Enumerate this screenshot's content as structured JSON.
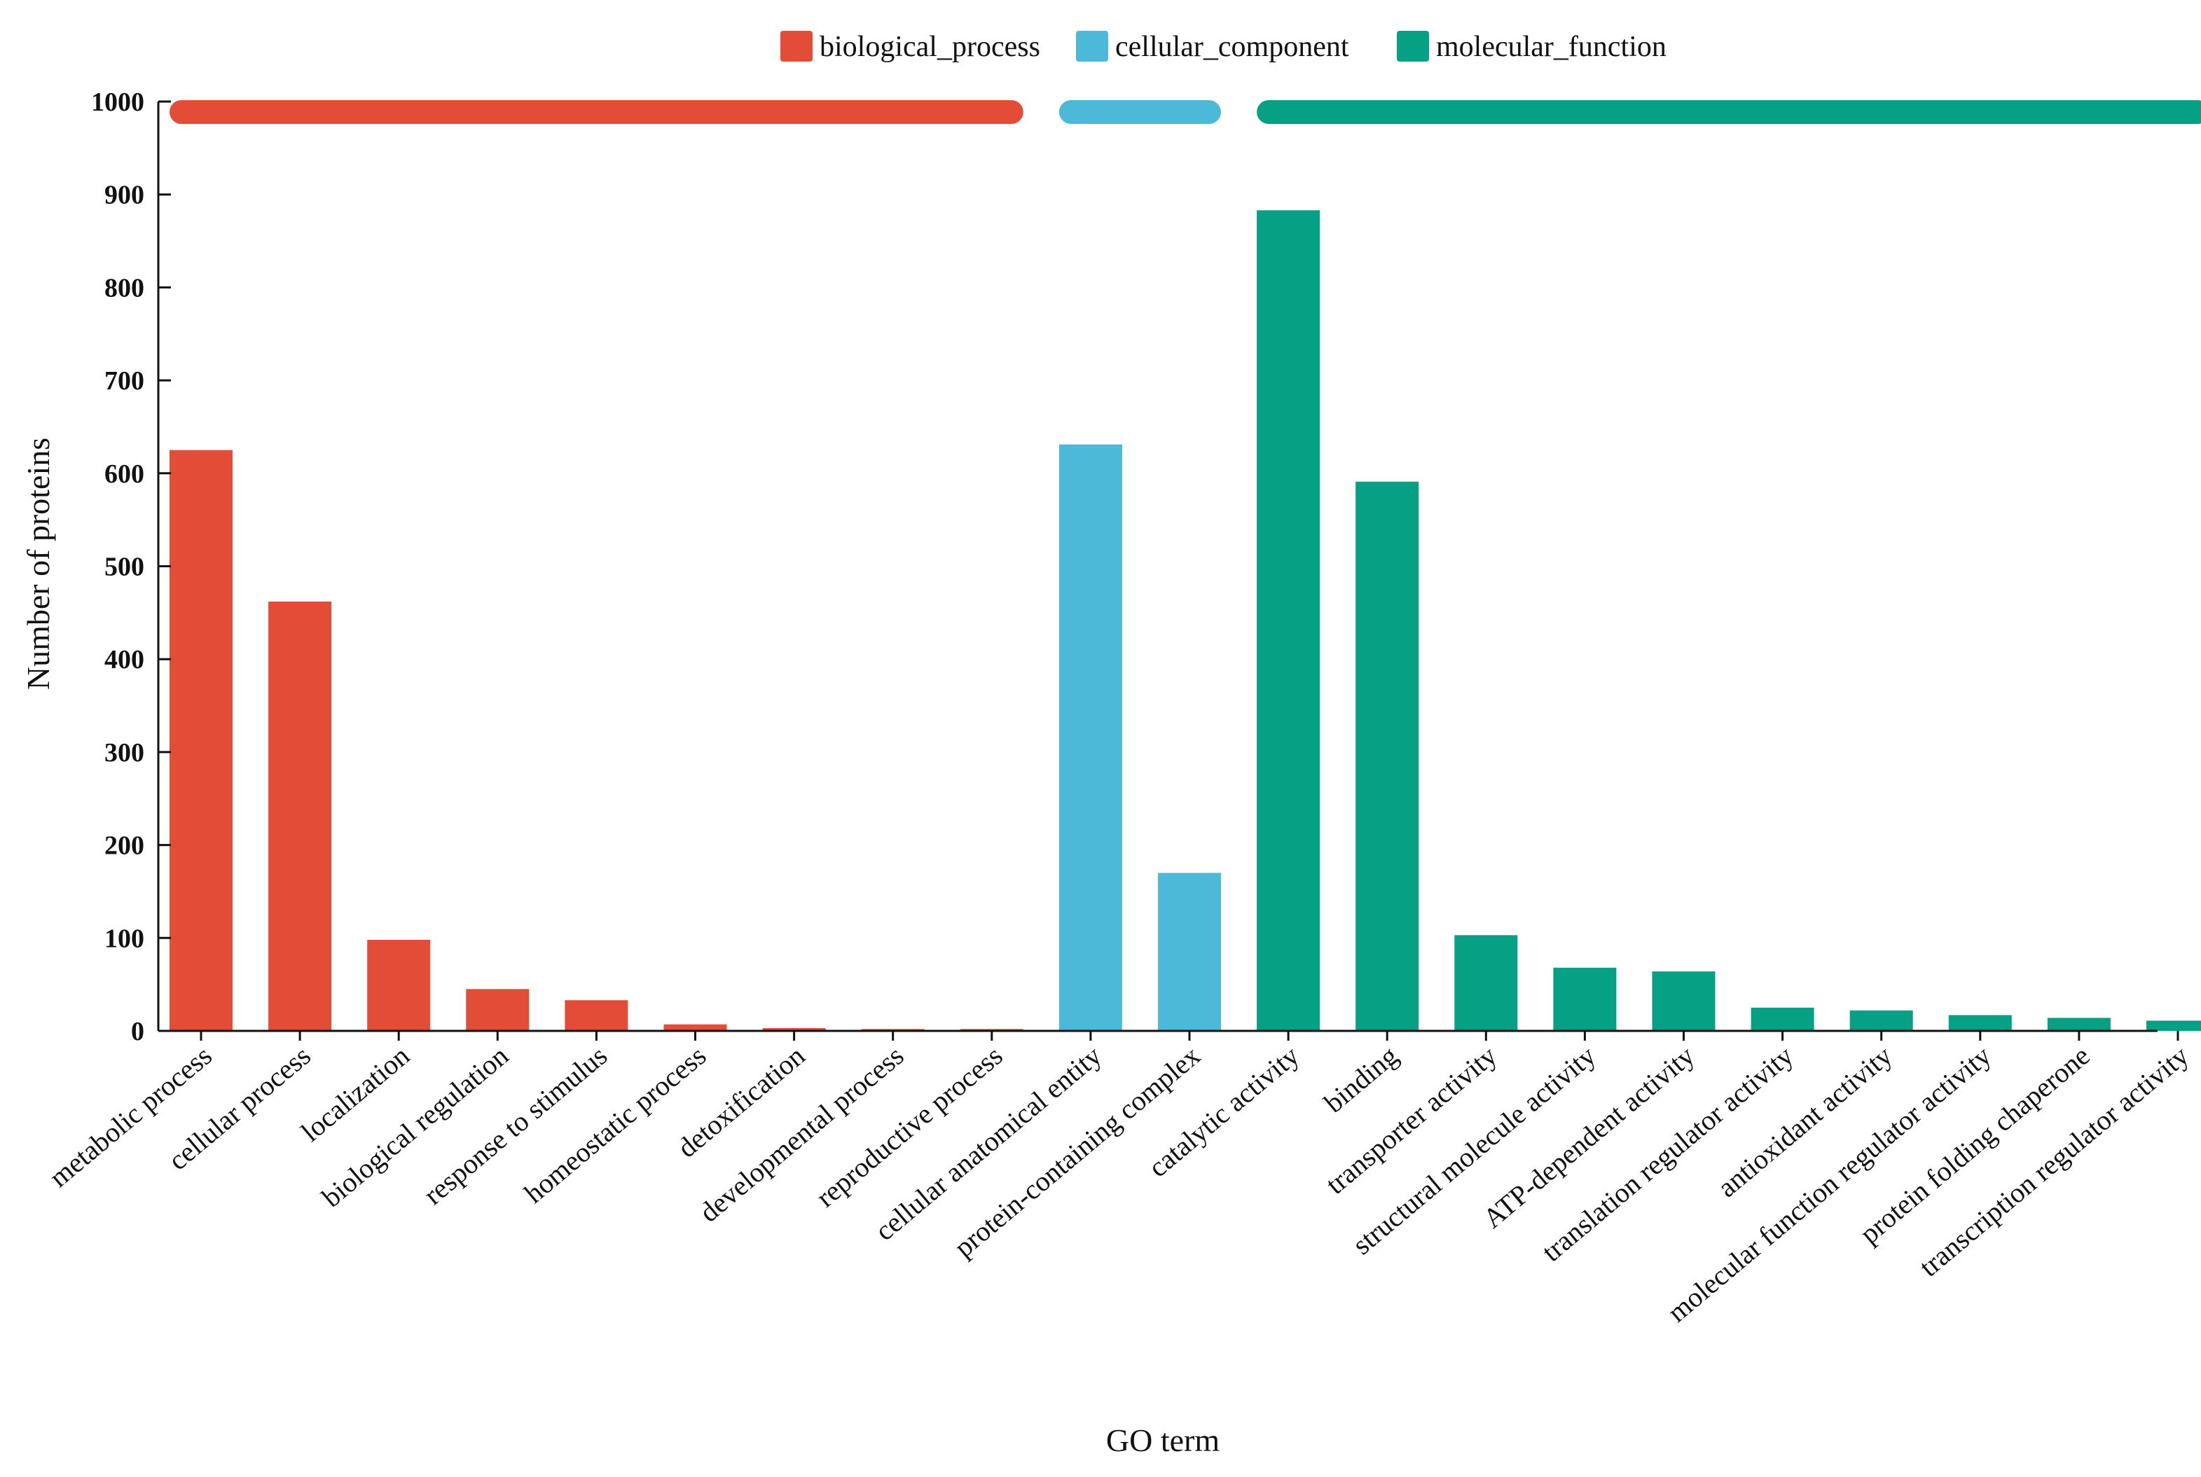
{
  "chart_data": {
    "type": "bar",
    "title": "",
    "xlabel": "GO term",
    "ylabel": "Number of proteins",
    "ylim": [
      0,
      1000
    ],
    "yticks": [
      0,
      100,
      200,
      300,
      400,
      500,
      600,
      700,
      800,
      900,
      1000
    ],
    "grid": false,
    "legend_position": "top-center",
    "groups": [
      {
        "name": "biological_process",
        "color": "#e34c36"
      },
      {
        "name": "cellular_component",
        "color": "#4cb9d8"
      },
      {
        "name": "molecular_function",
        "color": "#06a085"
      }
    ],
    "categories": [
      "metabolic process",
      "cellular process",
      "localization",
      "biological regulation",
      "response to stimulus",
      "homeostatic process",
      "detoxification",
      "developmental process",
      "reproductive process",
      "cellular anatomical entity",
      "protein-containing complex",
      "catalytic activity",
      "binding",
      "transporter activity",
      "structural molecule activity",
      "ATP-dependent activity",
      "translation regulator activity",
      "antioxidant activity",
      "molecular function regulator activity",
      "protein folding chaperone",
      "transcription regulator activity"
    ],
    "values": [
      625,
      462,
      98,
      45,
      33,
      7,
      3,
      2,
      2,
      631,
      170,
      883,
      591,
      103,
      68,
      64,
      25,
      22,
      17,
      14,
      11
    ],
    "category_group": [
      "biological_process",
      "biological_process",
      "biological_process",
      "biological_process",
      "biological_process",
      "biological_process",
      "biological_process",
      "biological_process",
      "biological_process",
      "cellular_component",
      "cellular_component",
      "molecular_function",
      "molecular_function",
      "molecular_function",
      "molecular_function",
      "molecular_function",
      "molecular_function",
      "molecular_function",
      "molecular_function",
      "molecular_function",
      "molecular_function"
    ]
  }
}
